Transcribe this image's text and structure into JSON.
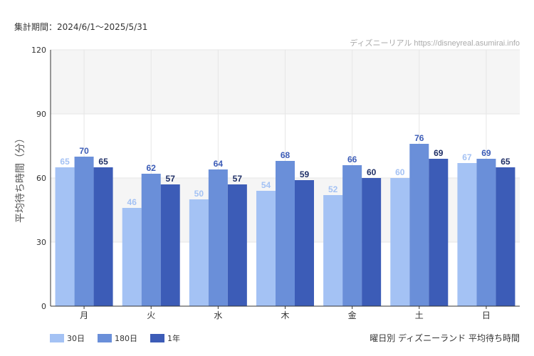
{
  "period_label": "集計期間：2024/6/1〜2025/5/31",
  "credit": "ディズニーリアル https://disneyreal.asumirai.info",
  "footer_title": "曜日別 ディズニーランド 平均待ち時間",
  "colors": {
    "s30": "#a4c2f4",
    "s180": "#6a8fd9",
    "s1y": "#3c5cb7",
    "band": "#f5f5f5",
    "grid": "#e6e6e6"
  },
  "chart_data": {
    "type": "bar",
    "ylabel": "平均待ち時間（分）",
    "ylim": [
      0,
      120
    ],
    "yticks": [
      0,
      30,
      60,
      90,
      120
    ],
    "categories": [
      "月",
      "火",
      "水",
      "木",
      "金",
      "土",
      "日"
    ],
    "series": [
      {
        "name": "30日",
        "values": [
          65,
          46,
          50,
          54,
          52,
          60,
          67
        ],
        "label_color": "#a4c2f4"
      },
      {
        "name": "180日",
        "values": [
          70,
          62,
          64,
          68,
          66,
          76,
          69
        ],
        "label_color": "#3c5cb7"
      },
      {
        "name": "1年",
        "values": [
          65,
          57,
          57,
          59,
          60,
          69,
          65
        ],
        "label_color": "#1f2f66"
      }
    ],
    "grid": true,
    "legend": "bottom-left"
  }
}
